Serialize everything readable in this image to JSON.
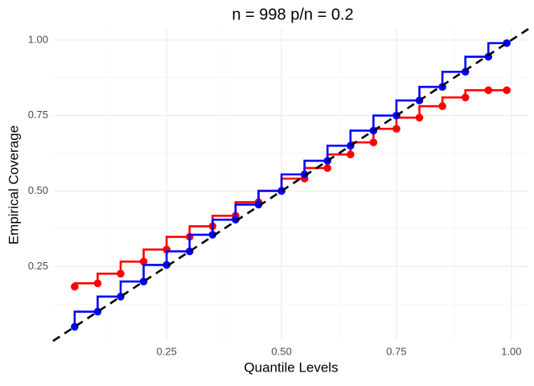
{
  "chart_data": {
    "type": "step",
    "step": "vh",
    "title": "n = 998 p/n = 0.2",
    "x_label": "Quantile Levels",
    "y_label": "Empirical Coverage",
    "xlim": [
      0.003,
      1.037
    ],
    "ylim": [
      0.003,
      1.037
    ],
    "xticks": [
      {
        "value": 0.25,
        "label": "0.25"
      },
      {
        "value": 0.5,
        "label": "0.50"
      },
      {
        "value": 0.75,
        "label": "0.75"
      },
      {
        "value": 1,
        "label": "1.00"
      }
    ],
    "yticks": [
      {
        "value": 0.25,
        "label": "0.25"
      },
      {
        "value": 0.5,
        "label": "0.50"
      },
      {
        "value": 0.75,
        "label": "0.75"
      },
      {
        "value": 1,
        "label": "1.00"
      }
    ],
    "x_minor_ticks": [
      0.125,
      0.375,
      0.625,
      0.875
    ],
    "y_minor_ticks": [
      0.125,
      0.375,
      0.625,
      0.875
    ],
    "grid": true,
    "diagonal": true,
    "diagonal_color": "#000000",
    "x": [
      0.05,
      0.1,
      0.15,
      0.2,
      0.25,
      0.3,
      0.35,
      0.4,
      0.45,
      0.5,
      0.55,
      0.6,
      0.65,
      0.7,
      0.75,
      0.8,
      0.85,
      0.9,
      0.95,
      0.99
    ],
    "series": [
      {
        "color": "#ff0000",
        "values": [
          0.183,
          0.194,
          0.226,
          0.266,
          0.306,
          0.348,
          0.383,
          0.418,
          0.463,
          0.501,
          0.541,
          0.576,
          0.621,
          0.661,
          0.706,
          0.743,
          0.781,
          0.81,
          0.834,
          0.834
        ]
      },
      {
        "color": "#0000ff",
        "values": [
          0.05,
          0.1,
          0.15,
          0.2,
          0.255,
          0.3,
          0.355,
          0.405,
          0.455,
          0.5,
          0.555,
          0.6,
          0.65,
          0.7,
          0.75,
          0.8,
          0.845,
          0.895,
          0.945,
          0.99
        ]
      }
    ]
  }
}
